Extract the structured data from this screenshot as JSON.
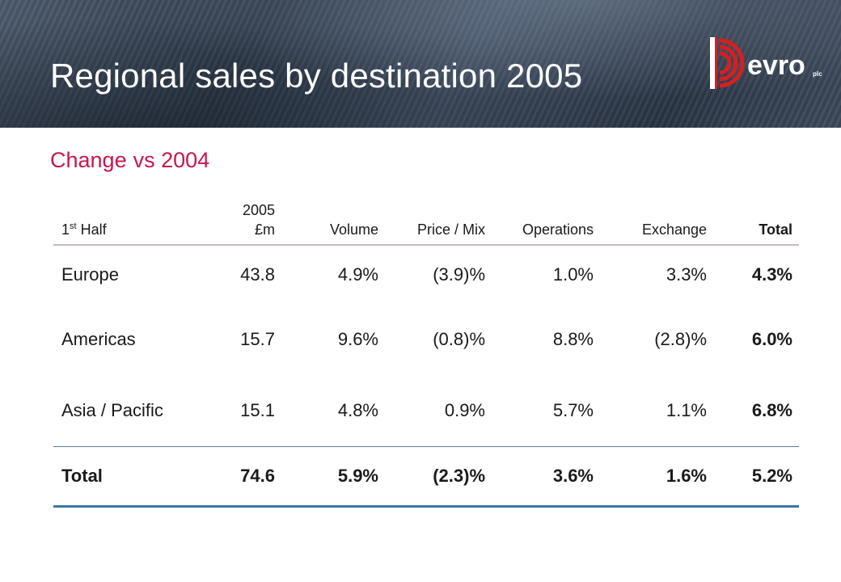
{
  "header": {
    "title": "Regional sales by destination 2005",
    "logo_text": "evro",
    "logo_suffix": "plc"
  },
  "subtitle": {
    "part1": "Change",
    "part2": "vs 2004"
  },
  "table": {
    "columns": {
      "region_base": "1",
      "region_sup": "st",
      "region_rest": " Half",
      "year": "2005",
      "unit": "£m",
      "volume": "Volume",
      "price_mix": "Price / Mix",
      "operations": "Operations",
      "exchange": "Exchange",
      "total": "Total"
    },
    "rows": [
      {
        "region": "Europe",
        "sales": "43.8",
        "volume": "4.9%",
        "price_mix": "(3.9)%",
        "operations": "1.0%",
        "exchange": "3.3%",
        "total": "4.3%"
      },
      {
        "region": "Americas",
        "sales": "15.7",
        "volume": "9.6%",
        "price_mix": "(0.8)%",
        "operations": "8.8%",
        "exchange": "(2.8)%",
        "total": "6.0%"
      },
      {
        "region": "Asia / Pacific",
        "sales": "15.1",
        "volume": "4.8%",
        "price_mix": "0.9%",
        "operations": "5.7%",
        "exchange": "1.1%",
        "total": "6.8%"
      }
    ],
    "total_row": {
      "region": "Total",
      "sales": "74.6",
      "volume": "5.9%",
      "price_mix": "(2.3)%",
      "operations": "3.6%",
      "exchange": "1.6%",
      "total": "5.2%"
    }
  },
  "colors": {
    "accent": "#c8174e",
    "logo_red": "#d42020",
    "rule_blue": "#3a78a8"
  }
}
